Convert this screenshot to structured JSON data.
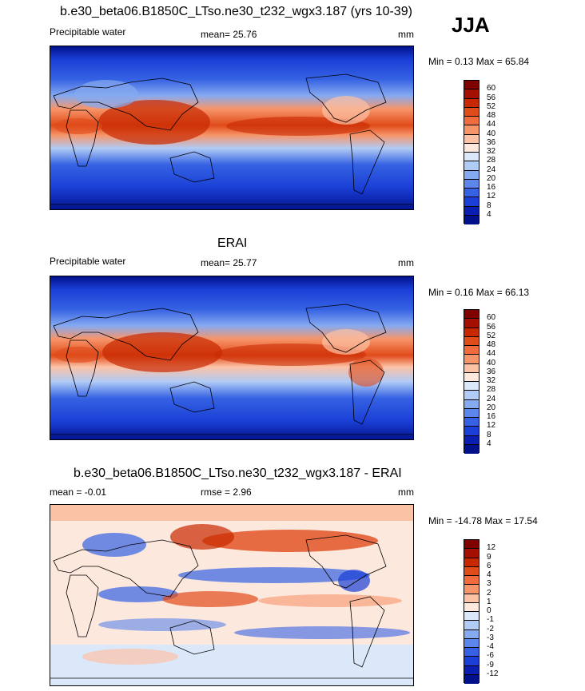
{
  "season": "JJA",
  "panels": [
    {
      "id": "model",
      "title": "b.e30_beta06.B1850C_LTso.ne30_t232_wgx3.187 (yrs 10-39)",
      "left_label": "Precipitable water",
      "stat_label": "mean=  25.76",
      "units": "mm",
      "minmax": "Min =   0.13 Max =  65.84",
      "colorbar_labels": [
        "60",
        "56",
        "52",
        "48",
        "44",
        "40",
        "36",
        "32",
        "28",
        "24",
        "20",
        "16",
        "12",
        "8",
        "4"
      ],
      "colorbar_colors": [
        "#7f0000",
        "#a50f00",
        "#c82800",
        "#e04b1a",
        "#f06c3c",
        "#f7956a",
        "#fcc2a6",
        "#fde8de",
        "#dbe8fa",
        "#b0cbf5",
        "#86aaf0",
        "#5c86ea",
        "#3562e3",
        "#1a3fd6",
        "#0a1fb0",
        "#02118a"
      ]
    },
    {
      "id": "obs",
      "title": "ERAI",
      "left_label": "Precipitable water",
      "stat_label": "mean=  25.77",
      "units": "mm",
      "minmax": "Min =   0.16 Max =  66.13",
      "colorbar_labels": [
        "60",
        "56",
        "52",
        "48",
        "44",
        "40",
        "36",
        "32",
        "28",
        "24",
        "20",
        "16",
        "12",
        "8",
        "4"
      ],
      "colorbar_colors": [
        "#7f0000",
        "#a50f00",
        "#c82800",
        "#e04b1a",
        "#f06c3c",
        "#f7956a",
        "#fcc2a6",
        "#fde8de",
        "#dbe8fa",
        "#b0cbf5",
        "#86aaf0",
        "#5c86ea",
        "#3562e3",
        "#1a3fd6",
        "#0a1fb0",
        "#02118a"
      ]
    },
    {
      "id": "diff",
      "title": "b.e30_beta06.B1850C_LTso.ne30_t232_wgx3.187 - ERAI",
      "left_label": "mean =  -0.01",
      "stat_label": "rmse =   2.96",
      "units": "mm",
      "minmax": "Min = -14.78 Max =  17.54",
      "colorbar_labels": [
        "12",
        "9",
        "6",
        "4",
        "3",
        "2",
        "1",
        "0",
        "-1",
        "-2",
        "-3",
        "-4",
        "-6",
        "-9",
        "-12"
      ],
      "colorbar_colors": [
        "#7f0000",
        "#a50f00",
        "#c82800",
        "#e04b1a",
        "#f06c3c",
        "#f7956a",
        "#fcc2a6",
        "#fde8de",
        "#dbe8fa",
        "#b0cbf5",
        "#86aaf0",
        "#5c86ea",
        "#3562e3",
        "#1a3fd6",
        "#0a1fb0",
        "#02118a"
      ]
    }
  ]
}
